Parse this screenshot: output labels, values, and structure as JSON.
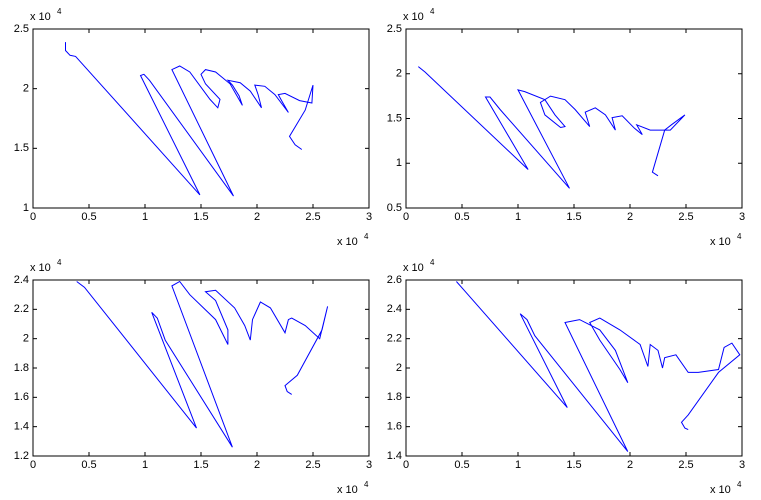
{
  "chart_data": [
    {
      "type": "line",
      "color": "#0000ff",
      "xlim": [
        0,
        3
      ],
      "xticks": [
        0,
        0.5,
        1,
        1.5,
        2,
        2.5,
        3
      ],
      "ylim": [
        1,
        2.5
      ],
      "yticks": [
        1,
        1.5,
        2,
        2.5
      ],
      "x_multiplier": {
        "base": "x 10",
        "power": 4
      },
      "y_multiplier": {
        "base": "x 10",
        "power": 4
      },
      "x": [
        0.29,
        0.29,
        0.33,
        0.38,
        1.49,
        0.96,
        0.99,
        1.04,
        1.79,
        1.24,
        1.31,
        1.4,
        1.58,
        1.65,
        1.67,
        1.54,
        1.5,
        1.54,
        1.63,
        1.76,
        1.87,
        1.84,
        1.78,
        1.74,
        1.85,
        1.94,
        2.04,
        2.01,
        1.98,
        2.07,
        2.16,
        2.28,
        2.22,
        2.19,
        2.25,
        2.38,
        2.49,
        2.5,
        2.43,
        2.29,
        2.34,
        2.4
      ],
      "values": [
        2.39,
        2.32,
        2.28,
        2.27,
        1.11,
        2.11,
        2.12,
        2.07,
        1.1,
        2.16,
        2.19,
        2.14,
        1.91,
        1.84,
        1.91,
        2.04,
        2.12,
        2.16,
        2.14,
        2.04,
        1.86,
        1.94,
        2.03,
        2.07,
        2.05,
        1.98,
        1.84,
        1.95,
        2.03,
        2.02,
        1.95,
        1.8,
        1.9,
        1.95,
        1.96,
        1.9,
        1.88,
        2.03,
        1.82,
        1.6,
        1.53,
        1.49
      ]
    },
    {
      "type": "line",
      "color": "#0000ff",
      "xlim": [
        0,
        3
      ],
      "xticks": [
        0,
        0.5,
        1,
        1.5,
        2,
        2.5,
        3
      ],
      "ylim": [
        0.5,
        2.5
      ],
      "yticks": [
        0.5,
        1,
        1.5,
        2,
        2.5
      ],
      "x_multiplier": {
        "base": "x 10",
        "power": 4
      },
      "y_multiplier": {
        "base": "x 10",
        "power": 4
      },
      "x": [
        0.11,
        0.17,
        1.09,
        0.71,
        0.75,
        0.84,
        1.46,
        1.0,
        1.06,
        1.24,
        1.33,
        1.42,
        1.38,
        1.24,
        1.2,
        1.29,
        1.42,
        1.51,
        1.64,
        1.6,
        1.69,
        1.78,
        1.87,
        1.84,
        1.93,
        2.04,
        2.11,
        2.06,
        2.18,
        2.36,
        2.49,
        2.37,
        2.31,
        2.2,
        2.25
      ],
      "values": [
        2.08,
        2.02,
        0.93,
        1.74,
        1.74,
        1.6,
        0.72,
        1.82,
        1.8,
        1.71,
        1.54,
        1.41,
        1.4,
        1.54,
        1.68,
        1.75,
        1.71,
        1.6,
        1.41,
        1.57,
        1.62,
        1.54,
        1.37,
        1.51,
        1.53,
        1.39,
        1.32,
        1.43,
        1.37,
        1.37,
        1.54,
        1.43,
        1.37,
        0.9,
        0.86
      ]
    },
    {
      "type": "line",
      "color": "#0000ff",
      "xlim": [
        0,
        3
      ],
      "xticks": [
        0,
        0.5,
        1,
        1.5,
        2,
        2.5,
        3
      ],
      "ylim": [
        1.2,
        2.4
      ],
      "yticks": [
        1.2,
        1.4,
        1.6,
        1.8,
        2,
        2.2,
        2.4
      ],
      "x_multiplier": {
        "base": "x 10",
        "power": 4
      },
      "y_multiplier": {
        "base": "x 10",
        "power": 4
      },
      "x": [
        0.39,
        0.46,
        1.46,
        1.06,
        1.11,
        1.18,
        1.78,
        1.24,
        1.31,
        1.4,
        1.63,
        1.74,
        1.74,
        1.63,
        1.54,
        1.63,
        1.8,
        1.89,
        1.94,
        1.96,
        2.03,
        2.12,
        2.25,
        2.28,
        2.31,
        2.43,
        2.56,
        2.63,
        2.58,
        2.36,
        2.25,
        2.27,
        2.31
      ],
      "values": [
        2.39,
        2.35,
        1.39,
        2.18,
        2.14,
        1.99,
        1.26,
        2.36,
        2.39,
        2.3,
        2.13,
        1.96,
        2.06,
        2.26,
        2.32,
        2.33,
        2.21,
        2.09,
        1.99,
        2.13,
        2.25,
        2.21,
        2.04,
        2.13,
        2.14,
        2.09,
        2.0,
        2.22,
        2.06,
        1.75,
        1.68,
        1.64,
        1.62
      ]
    },
    {
      "type": "line",
      "color": "#0000ff",
      "xlim": [
        0,
        3
      ],
      "xticks": [
        0,
        0.5,
        1,
        1.5,
        2,
        2.5,
        3
      ],
      "ylim": [
        1.4,
        2.6
      ],
      "yticks": [
        1.4,
        1.6,
        1.8,
        2,
        2.2,
        2.4,
        2.6
      ],
      "x_multiplier": {
        "base": "x 10",
        "power": 4
      },
      "y_multiplier": {
        "base": "x 10",
        "power": 4
      },
      "x": [
        0.45,
        0.52,
        1.44,
        1.02,
        1.08,
        1.15,
        1.98,
        1.42,
        1.55,
        1.73,
        1.87,
        1.98,
        1.91,
        1.73,
        1.64,
        1.73,
        1.91,
        2.09,
        2.16,
        2.18,
        2.25,
        2.29,
        2.31,
        2.41,
        2.52,
        2.61,
        2.79,
        2.84,
        2.91,
        2.98,
        2.79,
        2.52,
        2.46,
        2.49,
        2.52
      ],
      "values": [
        2.59,
        2.53,
        1.73,
        2.37,
        2.33,
        2.22,
        1.43,
        2.31,
        2.33,
        2.26,
        2.12,
        1.9,
        1.99,
        2.19,
        2.31,
        2.34,
        2.26,
        2.16,
        2.01,
        2.16,
        2.12,
        2.0,
        2.07,
        2.09,
        1.97,
        1.97,
        1.99,
        2.14,
        2.17,
        2.09,
        1.97,
        1.68,
        1.63,
        1.59,
        1.58
      ]
    }
  ]
}
